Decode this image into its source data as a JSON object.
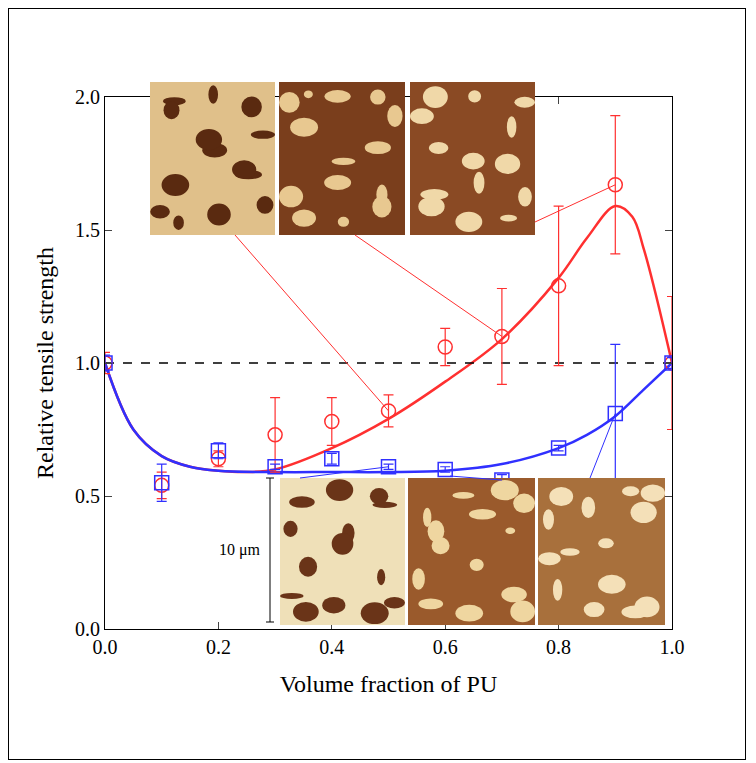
{
  "chart_data": {
    "type": "scatter",
    "x_label": "Volume fraction of PU",
    "y_label": "Relative tensile strength",
    "xlim": [
      0,
      1
    ],
    "xticks": [
      {
        "value": 0,
        "label": "0.0"
      },
      {
        "value": 0.2,
        "label": "0.2"
      },
      {
        "value": 0.4,
        "label": "0.4"
      },
      {
        "value": 0.6,
        "label": "0.6"
      },
      {
        "value": 0.8,
        "label": "0.8"
      },
      {
        "value": 1,
        "label": "1.0"
      }
    ],
    "ylim": [
      0,
      2
    ],
    "yticks": [
      {
        "value": 0,
        "label": "0.0"
      },
      {
        "value": 0.5,
        "label": "0.5"
      },
      {
        "value": 1,
        "label": "1.0"
      },
      {
        "value": 1.5,
        "label": "1.5"
      },
      {
        "value": 2,
        "label": "2.0"
      }
    ],
    "series": [
      {
        "type": "scatter",
        "color": "#ff3030",
        "marker": "circle-open",
        "x": [
          0,
          0.1,
          0.2,
          0.3,
          0.4,
          0.5,
          0.6,
          0.7,
          0.8,
          0.9,
          1
        ],
        "values": [
          1.0,
          0.54,
          0.64,
          0.73,
          0.78,
          0.82,
          1.06,
          1.1,
          1.29,
          1.67,
          1.0
        ],
        "errors": [
          0.04,
          0.05,
          0.03,
          0.14,
          0.09,
          0.06,
          0.07,
          0.18,
          0.3,
          0.26,
          0.25
        ]
      },
      {
        "type": "scatter",
        "color": "#3030ff",
        "marker": "square-open",
        "x": [
          0,
          0.1,
          0.2,
          0.3,
          0.4,
          0.5,
          0.6,
          0.7,
          0.8,
          0.9,
          1
        ],
        "values": [
          1.0,
          0.55,
          0.67,
          0.61,
          0.64,
          0.61,
          0.6,
          0.56,
          0.68,
          0.81,
          1.0
        ],
        "errors": [
          0.03,
          0.07,
          0.03,
          0.01,
          0.02,
          0.01,
          0.01,
          0.02,
          0.01,
          0.26,
          0.02
        ]
      },
      {
        "type": "line",
        "color": "#ff3030",
        "line_style": "solid",
        "x": [
          0,
          0.05,
          0.1,
          0.15,
          0.2,
          0.25,
          0.3,
          0.4,
          0.5,
          0.6,
          0.7,
          0.8,
          0.85,
          0.9,
          0.93,
          0.95,
          0.97,
          1
        ],
        "values": [
          1.0,
          0.75,
          0.65,
          0.61,
          0.595,
          0.59,
          0.6,
          0.68,
          0.79,
          0.93,
          1.09,
          1.32,
          1.47,
          1.59,
          1.55,
          1.43,
          1.27,
          1.0
        ]
      },
      {
        "type": "line",
        "color": "#3030ff",
        "line_style": "solid",
        "x": [
          0,
          0.05,
          0.1,
          0.15,
          0.2,
          0.3,
          0.4,
          0.5,
          0.6,
          0.7,
          0.8,
          0.85,
          0.9,
          0.95,
          1
        ],
        "values": [
          1.0,
          0.75,
          0.65,
          0.61,
          0.595,
          0.59,
          0.59,
          0.59,
          0.595,
          0.62,
          0.68,
          0.73,
          0.8,
          0.9,
          1.0
        ]
      },
      {
        "type": "line",
        "color": "#000000",
        "line_style": "dash",
        "x": [
          0,
          1
        ],
        "values": [
          1,
          1
        ]
      }
    ],
    "annotations": [
      "10 μm"
    ]
  }
}
